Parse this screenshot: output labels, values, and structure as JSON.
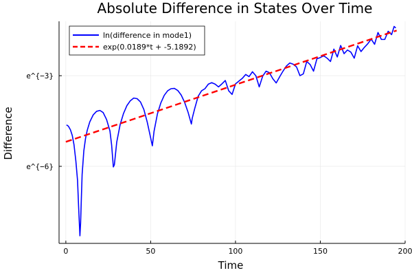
{
  "chart_data": {
    "type": "line",
    "title": "Absolute Difference in States Over Time",
    "xlabel": "Time",
    "ylabel": "Difference",
    "xlim": [
      -4,
      200
    ],
    "ylim": [
      -8.55,
      -1.2
    ],
    "x_ticks": [
      0,
      50,
      100,
      150,
      200
    ],
    "x_tick_labels": [
      "0",
      "50",
      "100",
      "150",
      "200"
    ],
    "y_ticks": [
      -6,
      -3
    ],
    "y_tick_labels": [
      "e^{−6}",
      "e^{−3}"
    ],
    "grid": true,
    "legend_position": "top-left",
    "series": [
      {
        "name": "ln(difference in mode1)",
        "color": "#0000ff",
        "style": "solid",
        "x": [
          0.4,
          1.5,
          2.7,
          3.8,
          4.8,
          5.9,
          6.9,
          7.5,
          7.9,
          8.3,
          8.7,
          9.2,
          9.6,
          10.6,
          11.6,
          12.6,
          14.1,
          16.1,
          18.1,
          20.1,
          22.0,
          24.0,
          26.0,
          27.0,
          28.0,
          28.6,
          30.0,
          32.0,
          34.0,
          36.0,
          38.0,
          40.0,
          42.0,
          44.0,
          46.0,
          48.0,
          50.0,
          51.0,
          52.0,
          54.0,
          56.0,
          58.0,
          60.0,
          62.0,
          64.0,
          66.0,
          68.0,
          70.0,
          72.0,
          74.0,
          74.5,
          76.0,
          78.0,
          80.0,
          82.0,
          84.0,
          86.0,
          88.0,
          90.0,
          92.0,
          94.0,
          96.0,
          98.0,
          100.0,
          102.0,
          104.0,
          106.0,
          108.0,
          110.0,
          112.0,
          114.0,
          116.0,
          118.0,
          120.0,
          122.0,
          124.0,
          126.0,
          128.0,
          130.0,
          132.0,
          134.0,
          136.0,
          138.0,
          140.0,
          142.0,
          144.0,
          146.0,
          148.0,
          150.0,
          152.0,
          154.0,
          156.0,
          158.0,
          160.0,
          162.0,
          164.0,
          166.0,
          168.0,
          170.0,
          172.0,
          174.0,
          176.0,
          178.0,
          180.0,
          182.0,
          184.0,
          186.0,
          188.0,
          190.0,
          192.0,
          193.5,
          194.5
        ],
        "y": [
          -4.63,
          -4.67,
          -4.79,
          -4.98,
          -5.28,
          -5.82,
          -6.47,
          -7.3,
          -7.8,
          -8.3,
          -7.88,
          -6.97,
          -6.27,
          -5.49,
          -5.08,
          -4.81,
          -4.53,
          -4.3,
          -4.18,
          -4.15,
          -4.22,
          -4.45,
          -4.83,
          -5.3,
          -6.02,
          -5.95,
          -5.2,
          -4.62,
          -4.25,
          -3.99,
          -3.83,
          -3.74,
          -3.76,
          -3.87,
          -4.12,
          -4.54,
          -5.06,
          -5.32,
          -4.84,
          -4.26,
          -3.9,
          -3.65,
          -3.5,
          -3.43,
          -3.42,
          -3.49,
          -3.64,
          -3.88,
          -4.2,
          -4.6,
          -4.41,
          -4.08,
          -3.68,
          -3.5,
          -3.43,
          -3.28,
          -3.23,
          -3.28,
          -3.37,
          -3.27,
          -3.16,
          -3.5,
          -3.62,
          -3.27,
          -3.18,
          -3.09,
          -2.96,
          -3.03,
          -2.87,
          -3.0,
          -3.37,
          -3.02,
          -2.85,
          -2.9,
          -3.1,
          -3.24,
          -3.04,
          -2.85,
          -2.68,
          -2.58,
          -2.62,
          -2.71,
          -3.0,
          -2.94,
          -2.53,
          -2.63,
          -2.85,
          -2.44,
          -2.4,
          -2.34,
          -2.42,
          -2.53,
          -2.12,
          -2.38,
          -2.0,
          -2.27,
          -2.15,
          -2.22,
          -2.42,
          -2.01,
          -2.2,
          -2.06,
          -1.94,
          -1.79,
          -1.96,
          -1.57,
          -1.8,
          -1.8,
          -1.53,
          -1.64,
          -1.37,
          -1.42
        ]
      },
      {
        "name": "exp(0.0189*t + -5.1892)",
        "color": "#ff0000",
        "style": "dashed",
        "x": [
          0,
          195
        ],
        "y": [
          -5.1892,
          -1.5037
        ]
      }
    ]
  }
}
